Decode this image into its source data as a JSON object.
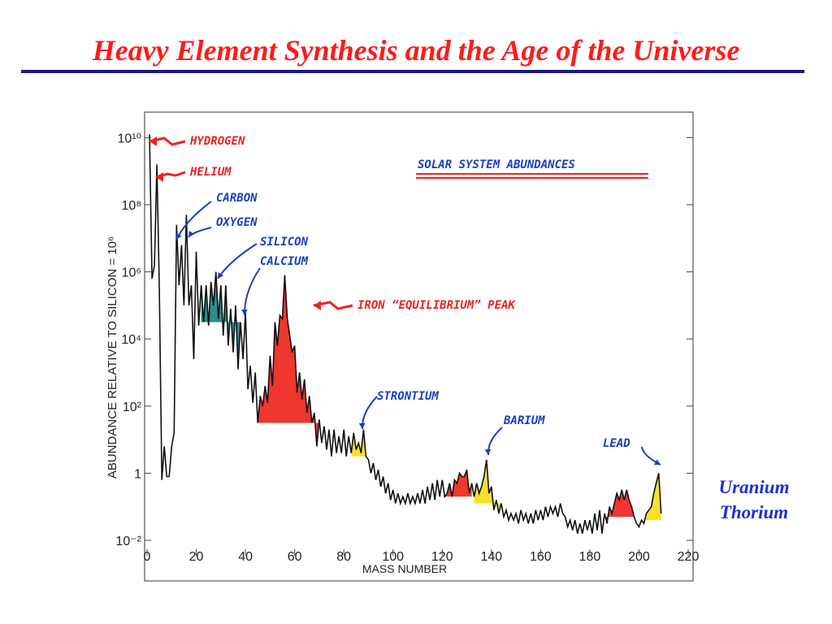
{
  "slide": {
    "title": "Heavy Element Synthesis and the Age of the Universe",
    "side_labels": [
      "Uranium",
      "Thorium"
    ]
  },
  "colors": {
    "title": "#ff1a1a",
    "rule": "#1a1a80",
    "annotation_red": "#ee2222",
    "annotation_blue": "#1a3fc4",
    "fill_red": "#ee2b24",
    "fill_yellow": "#f6e020",
    "fill_teal": "#1e8a86",
    "line": "#111111"
  },
  "chart_data": {
    "type": "line",
    "title": "SOLAR SYSTEM ABUNDANCES",
    "xlabel": "MASS NUMBER",
    "ylabel": "ABUNDANCE RELATIVE TO SILICON = 10⁶",
    "xlim": [
      0,
      220
    ],
    "ylim_log10": [
      -2,
      10.3
    ],
    "y_scale": "log",
    "grid": false,
    "x_ticks": [
      0,
      20,
      40,
      60,
      80,
      100,
      120,
      140,
      160,
      180,
      200,
      220
    ],
    "y_ticks": [
      {
        "exp": 10,
        "label": "10¹⁰"
      },
      {
        "exp": 8,
        "label": "10⁸"
      },
      {
        "exp": 6,
        "label": "10⁶"
      },
      {
        "exp": 4,
        "label": "10⁴"
      },
      {
        "exp": 2,
        "label": "10²"
      },
      {
        "exp": 0,
        "label": "1"
      },
      {
        "exp": -2,
        "label": "10⁻²"
      }
    ],
    "series": [
      {
        "abundance_log10": [
          [
            1,
            10.1
          ],
          [
            2,
            5.8
          ],
          [
            3,
            6.2
          ],
          [
            4,
            9.2
          ],
          [
            5,
            5.5
          ],
          [
            6,
            -0.2
          ],
          [
            7,
            0.8
          ],
          [
            8,
            -0.1
          ],
          [
            9,
            -0.1
          ],
          [
            10,
            0.8
          ],
          [
            11,
            1.2
          ],
          [
            12,
            7.4
          ],
          [
            13,
            5.6
          ],
          [
            14,
            6.8
          ],
          [
            15,
            5.0
          ],
          [
            16,
            7.7
          ],
          [
            17,
            5.0
          ],
          [
            18,
            5.6
          ],
          [
            19,
            3.4
          ],
          [
            20,
            6.6
          ],
          [
            21,
            4.4
          ],
          [
            22,
            5.6
          ],
          [
            23,
            4.5
          ],
          [
            24,
            5.6
          ],
          [
            25,
            4.4
          ],
          [
            26,
            5.7
          ],
          [
            27,
            5.0
          ],
          [
            28,
            6.0
          ],
          [
            29,
            4.6
          ],
          [
            30,
            5.6
          ],
          [
            31,
            4.1
          ],
          [
            32,
            5.6
          ],
          [
            33,
            3.8
          ],
          [
            34,
            4.9
          ],
          [
            35,
            3.6
          ],
          [
            36,
            5.0
          ],
          [
            37,
            3.1
          ],
          [
            38,
            4.5
          ],
          [
            39,
            3.4
          ],
          [
            40,
            4.8
          ],
          [
            41,
            2.5
          ],
          [
            42,
            3.2
          ],
          [
            43,
            2.1
          ],
          [
            44,
            3.0
          ],
          [
            45,
            1.5
          ],
          [
            46,
            2.3
          ],
          [
            47,
            2.0
          ],
          [
            48,
            2.6
          ],
          [
            49,
            2.1
          ],
          [
            50,
            3.5
          ],
          [
            51,
            2.6
          ],
          [
            52,
            4.5
          ],
          [
            53,
            3.8
          ],
          [
            54,
            4.7
          ],
          [
            55,
            4.6
          ],
          [
            56,
            5.9
          ],
          [
            57,
            4.6
          ],
          [
            58,
            4.1
          ],
          [
            59,
            3.6
          ],
          [
            60,
            3.8
          ],
          [
            61,
            2.4
          ],
          [
            62,
            3.0
          ],
          [
            63,
            2.2
          ],
          [
            64,
            2.8
          ],
          [
            65,
            1.8
          ],
          [
            66,
            2.3
          ],
          [
            67,
            1.5
          ],
          [
            68,
            1.8
          ],
          [
            69,
            0.8
          ],
          [
            70,
            1.6
          ],
          [
            71,
            0.9
          ],
          [
            72,
            1.4
          ],
          [
            73,
            0.7
          ],
          [
            74,
            1.3
          ],
          [
            75,
            0.5
          ],
          [
            76,
            1.3
          ],
          [
            77,
            0.6
          ],
          [
            78,
            1.1
          ],
          [
            79,
            0.6
          ],
          [
            80,
            1.3
          ],
          [
            81,
            0.5
          ],
          [
            82,
            1.1
          ],
          [
            83,
            0.6
          ],
          [
            84,
            1.2
          ],
          [
            85,
            0.7
          ],
          [
            86,
            0.9
          ],
          [
            87,
            0.6
          ],
          [
            88,
            1.3
          ],
          [
            89,
            0.5
          ],
          [
            90,
            0.4
          ],
          [
            91,
            0.0
          ],
          [
            92,
            0.3
          ],
          [
            93,
            -0.2
          ],
          [
            94,
            0.1
          ],
          [
            95,
            -0.4
          ],
          [
            96,
            -0.1
          ],
          [
            97,
            -0.6
          ],
          [
            98,
            -0.3
          ],
          [
            99,
            -0.8
          ],
          [
            100,
            -0.5
          ],
          [
            101,
            -0.9
          ],
          [
            102,
            -0.6
          ],
          [
            103,
            -0.9
          ],
          [
            104,
            -0.7
          ],
          [
            105,
            -0.9
          ],
          [
            106,
            -0.6
          ],
          [
            107,
            -0.9
          ],
          [
            108,
            -0.7
          ],
          [
            109,
            -0.9
          ],
          [
            110,
            -0.6
          ],
          [
            111,
            -0.9
          ],
          [
            112,
            -0.5
          ],
          [
            113,
            -0.9
          ],
          [
            114,
            -0.4
          ],
          [
            115,
            -0.8
          ],
          [
            116,
            -0.3
          ],
          [
            117,
            -0.8
          ],
          [
            118,
            -0.2
          ],
          [
            119,
            -0.7
          ],
          [
            120,
            -0.2
          ],
          [
            121,
            -0.7
          ],
          [
            122,
            -0.6
          ],
          [
            123,
            -0.3
          ],
          [
            124,
            -0.7
          ],
          [
            125,
            -0.2
          ],
          [
            126,
            -0.3
          ],
          [
            127,
            0.0
          ],
          [
            128,
            -0.1
          ],
          [
            129,
            -0.1
          ],
          [
            130,
            0.1
          ],
          [
            131,
            -0.6
          ],
          [
            132,
            -0.3
          ],
          [
            133,
            -0.7
          ],
          [
            134,
            -0.3
          ],
          [
            135,
            -0.6
          ],
          [
            136,
            -0.4
          ],
          [
            137,
            -0.1
          ],
          [
            138,
            0.4
          ],
          [
            139,
            -0.6
          ],
          [
            140,
            -0.4
          ],
          [
            141,
            -1.1
          ],
          [
            142,
            -0.8
          ],
          [
            143,
            -1.2
          ],
          [
            144,
            -0.9
          ],
          [
            145,
            -1.3
          ],
          [
            146,
            -1.1
          ],
          [
            147,
            -1.4
          ],
          [
            148,
            -1.2
          ],
          [
            149,
            -1.4
          ],
          [
            150,
            -1.2
          ],
          [
            151,
            -1.5
          ],
          [
            152,
            -1.1
          ],
          [
            153,
            -1.4
          ],
          [
            154,
            -1.2
          ],
          [
            155,
            -1.5
          ],
          [
            156,
            -1.2
          ],
          [
            157,
            -1.5
          ],
          [
            158,
            -1.1
          ],
          [
            159,
            -1.4
          ],
          [
            160,
            -1.1
          ],
          [
            161,
            -1.4
          ],
          [
            162,
            -1.0
          ],
          [
            163,
            -1.3
          ],
          [
            164,
            -1.0
          ],
          [
            165,
            -1.2
          ],
          [
            166,
            -1.0
          ],
          [
            167,
            -1.3
          ],
          [
            168,
            -0.9
          ],
          [
            169,
            -1.2
          ],
          [
            170,
            -1.3
          ],
          [
            171,
            -1.6
          ],
          [
            172,
            -1.4
          ],
          [
            173,
            -1.7
          ],
          [
            174,
            -1.4
          ],
          [
            175,
            -1.8
          ],
          [
            176,
            -1.5
          ],
          [
            177,
            -1.8
          ],
          [
            178,
            -1.4
          ],
          [
            179,
            -1.7
          ],
          [
            180,
            -1.4
          ],
          [
            181,
            -1.8
          ],
          [
            182,
            -1.2
          ],
          [
            183,
            -1.7
          ],
          [
            184,
            -1.1
          ],
          [
            185,
            -1.8
          ],
          [
            186,
            -1.2
          ],
          [
            187,
            -1.5
          ],
          [
            188,
            -1.0
          ],
          [
            189,
            -1.2
          ],
          [
            190,
            -0.9
          ],
          [
            191,
            -0.6
          ],
          [
            192,
            -0.8
          ],
          [
            193,
            -0.5
          ],
          [
            194,
            -0.8
          ],
          [
            195,
            -0.5
          ],
          [
            196,
            -0.8
          ],
          [
            197,
            -1.0
          ],
          [
            198,
            -1.3
          ],
          [
            199,
            -1.5
          ],
          [
            200,
            -1.6
          ],
          [
            201,
            -1.4
          ],
          [
            202,
            -1.5
          ],
          [
            203,
            -1.2
          ],
          [
            204,
            -1.1
          ],
          [
            205,
            -1.0
          ],
          [
            206,
            -0.6
          ],
          [
            207,
            -0.3
          ],
          [
            208,
            0.0
          ],
          [
            209,
            -1.2
          ]
        ]
      }
    ],
    "shaded_regions": [
      {
        "color": "teal",
        "x": [
          22,
          38
        ]
      },
      {
        "color": "red",
        "x": [
          45,
          70
        ]
      },
      {
        "color": "yellow",
        "x": [
          83,
          89
        ]
      },
      {
        "color": "red",
        "x": [
          121,
          132
        ]
      },
      {
        "color": "yellow",
        "x": [
          133,
          144
        ]
      },
      {
        "color": "red",
        "x": [
          186,
          198
        ]
      },
      {
        "color": "yellow",
        "x": [
          201,
          209
        ]
      }
    ],
    "annotations": [
      {
        "text": "HYDROGEN",
        "color": "red",
        "points_to": [
          1,
          10.1
        ]
      },
      {
        "text": "HELIUM",
        "color": "red",
        "points_to": [
          4,
          9.2
        ]
      },
      {
        "text": "CARBON",
        "color": "blue",
        "points_to": [
          12,
          7.4
        ]
      },
      {
        "text": "OXYGEN",
        "color": "blue",
        "points_to": [
          16,
          7.7
        ]
      },
      {
        "text": "SILICON",
        "color": "blue",
        "points_to": [
          28,
          6.0
        ]
      },
      {
        "text": "CALCIUM",
        "color": "blue",
        "points_to": [
          40,
          4.8
        ]
      },
      {
        "text": "IRON “EQUILIBRIUM” PEAK",
        "color": "red",
        "points_to": [
          56,
          5.9
        ]
      },
      {
        "text": "STRONTIUM",
        "color": "blue",
        "points_to": [
          88,
          1.3
        ]
      },
      {
        "text": "BARIUM",
        "color": "blue",
        "points_to": [
          138,
          0.4
        ]
      },
      {
        "text": "LEAD",
        "color": "blue",
        "points_to": [
          208,
          0.0
        ]
      }
    ]
  }
}
